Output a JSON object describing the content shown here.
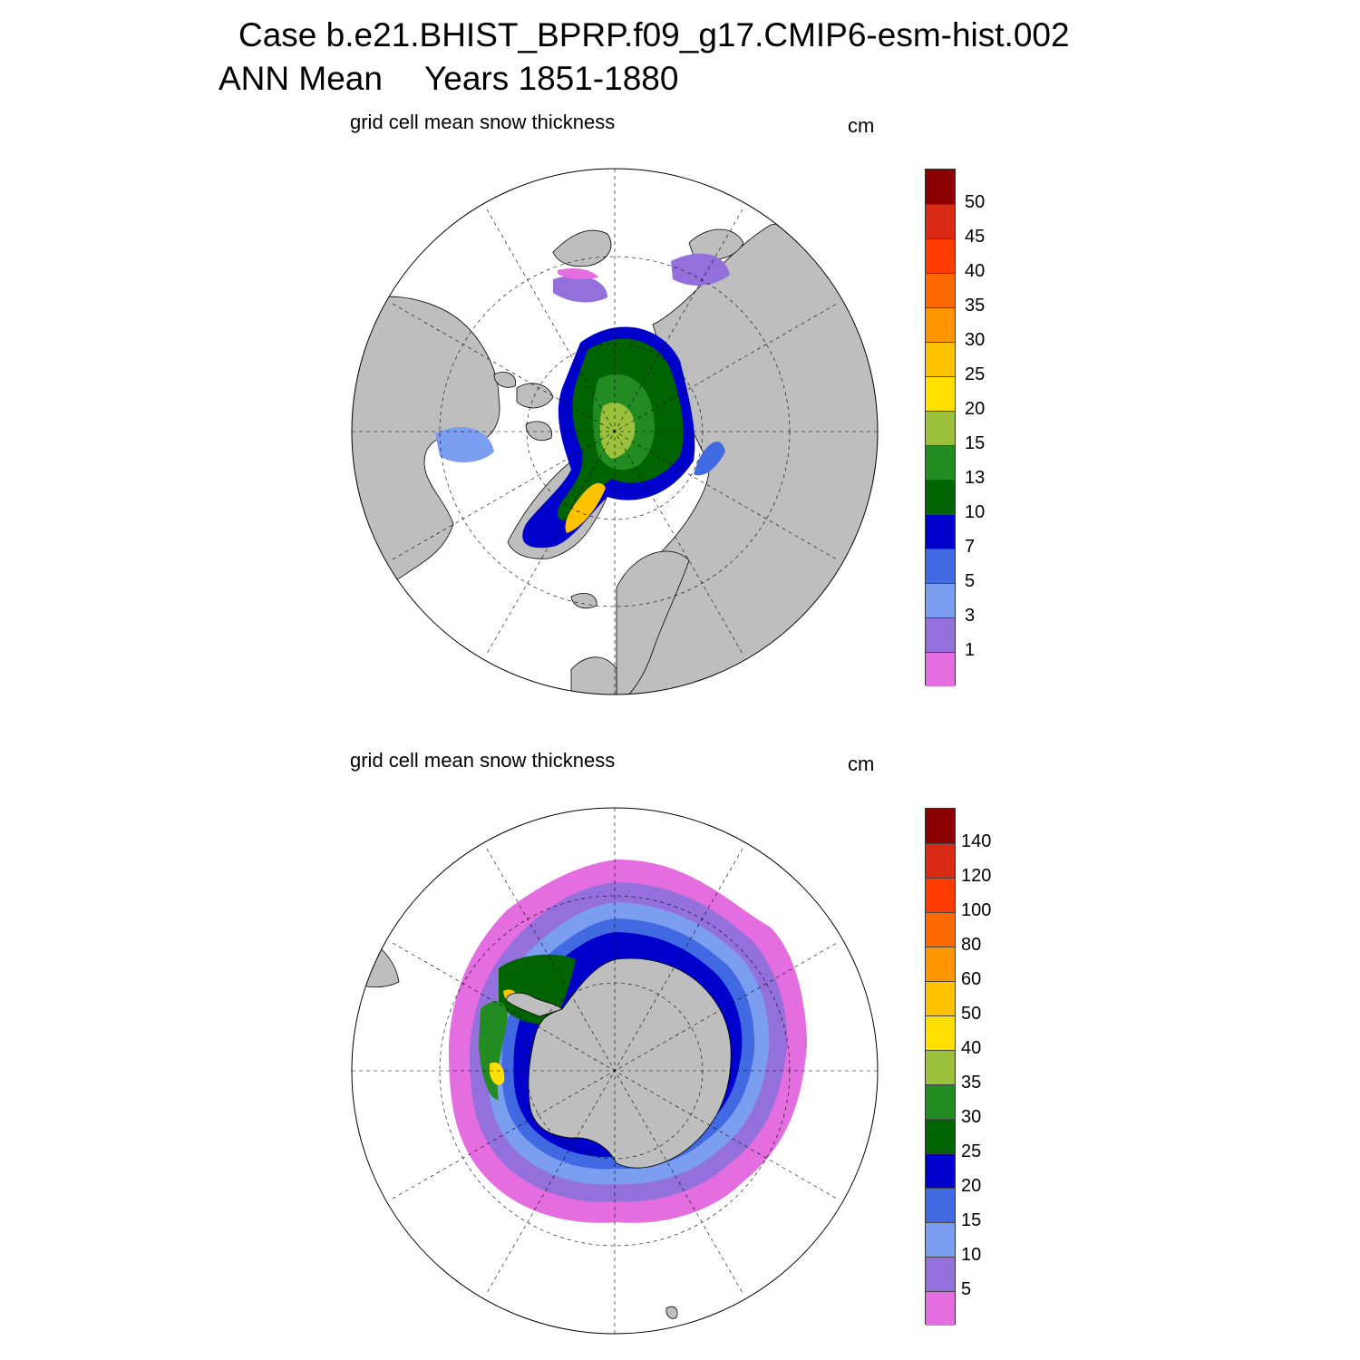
{
  "title": {
    "line1": "Case b.e21.BHIST_BPRP.f09_g17.CMIP6-esm-hist.002",
    "season": "ANN Mean",
    "years": "Years 1851-1880"
  },
  "panels": [
    {
      "hemisphere": "north",
      "title": "grid cell mean snow thickness",
      "units": "cm",
      "colorbar": {
        "labels": [
          "50",
          "45",
          "40",
          "35",
          "30",
          "25",
          "20",
          "15",
          "13",
          "10",
          "7",
          "5",
          "3",
          "1"
        ],
        "colors": [
          "#8b0000",
          "#d82a14",
          "#ff3b00",
          "#ff6a00",
          "#ff9500",
          "#ffc200",
          "#ffe000",
          "#9bc03c",
          "#228b22",
          "#006400",
          "#0000cd",
          "#4169e1",
          "#7b9ef0",
          "#9370db",
          "#e46ee0"
        ]
      },
      "land_color": "#bebebe",
      "ocean_color": "#ffffff"
    },
    {
      "hemisphere": "south",
      "title": "grid cell mean snow thickness",
      "units": "cm",
      "colorbar": {
        "labels": [
          "140",
          "120",
          "100",
          "80",
          "60",
          "50",
          "40",
          "35",
          "30",
          "25",
          "20",
          "15",
          "10",
          "5"
        ],
        "colors": [
          "#8b0000",
          "#d82a14",
          "#ff3b00",
          "#ff6a00",
          "#ff9500",
          "#ffc200",
          "#ffe000",
          "#9bc03c",
          "#228b22",
          "#006400",
          "#0000cd",
          "#4169e1",
          "#7b9ef0",
          "#9370db",
          "#e46ee0"
        ]
      },
      "land_color": "#bebebe",
      "ocean_color": "#ffffff"
    }
  ]
}
